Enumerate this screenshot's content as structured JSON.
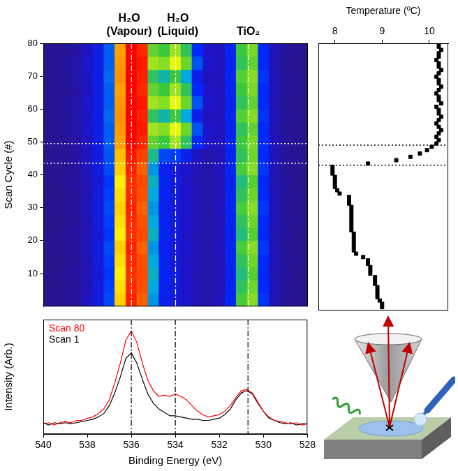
{
  "chart_data": [
    {
      "type": "heatmap",
      "annotations": [
        {
          "x": 536,
          "label": "H₂O (Vapour)"
        },
        {
          "x": 534,
          "label": "H₂O (Liquid)"
        },
        {
          "x": 530.7,
          "label": "TiO₂"
        }
      ],
      "x": [
        540,
        539.5,
        539,
        538.5,
        538,
        537.5,
        537,
        536.5,
        536,
        535.5,
        535,
        534.5,
        534,
        533.5,
        533,
        532.5,
        532,
        531.5,
        531,
        530.5,
        530,
        529.5,
        529,
        528.5,
        528
      ],
      "y": [
        2,
        6,
        10,
        14,
        18,
        22,
        26,
        30,
        34,
        38,
        42,
        46,
        50,
        54,
        58,
        62,
        66,
        70,
        74,
        78
      ],
      "cells": [
        [
          0.05,
          0.06,
          0.06,
          0.08,
          0.13,
          0.21,
          0.33,
          0.74,
          0.96,
          0.88,
          0.4,
          0.25,
          0.2,
          0.16,
          0.12,
          0.1,
          0.13,
          0.27,
          0.53,
          0.58,
          0.31,
          0.12,
          0.07,
          0.06,
          0.05
        ],
        [
          0.05,
          0.05,
          0.06,
          0.08,
          0.12,
          0.2,
          0.32,
          0.72,
          0.95,
          0.9,
          0.42,
          0.26,
          0.2,
          0.15,
          0.12,
          0.1,
          0.12,
          0.26,
          0.5,
          0.56,
          0.3,
          0.12,
          0.08,
          0.06,
          0.05
        ],
        [
          0.06,
          0.05,
          0.07,
          0.09,
          0.12,
          0.19,
          0.31,
          0.7,
          0.94,
          0.91,
          0.44,
          0.27,
          0.21,
          0.15,
          0.11,
          0.1,
          0.12,
          0.25,
          0.48,
          0.54,
          0.29,
          0.11,
          0.08,
          0.05,
          0.05
        ],
        [
          0.05,
          0.05,
          0.06,
          0.08,
          0.12,
          0.2,
          0.32,
          0.72,
          0.95,
          0.9,
          0.42,
          0.26,
          0.2,
          0.15,
          0.12,
          0.1,
          0.12,
          0.26,
          0.5,
          0.56,
          0.3,
          0.12,
          0.08,
          0.06,
          0.05
        ],
        [
          0.05,
          0.06,
          0.06,
          0.08,
          0.13,
          0.21,
          0.33,
          0.74,
          0.96,
          0.88,
          0.4,
          0.25,
          0.2,
          0.16,
          0.12,
          0.1,
          0.13,
          0.27,
          0.53,
          0.58,
          0.31,
          0.12,
          0.07,
          0.06,
          0.05
        ],
        [
          0.06,
          0.05,
          0.07,
          0.09,
          0.12,
          0.19,
          0.31,
          0.7,
          0.94,
          0.91,
          0.44,
          0.27,
          0.21,
          0.15,
          0.11,
          0.1,
          0.12,
          0.25,
          0.48,
          0.54,
          0.29,
          0.11,
          0.08,
          0.05,
          0.05
        ],
        [
          0.05,
          0.05,
          0.06,
          0.08,
          0.12,
          0.2,
          0.32,
          0.72,
          0.95,
          0.9,
          0.42,
          0.26,
          0.2,
          0.15,
          0.12,
          0.1,
          0.12,
          0.26,
          0.5,
          0.56,
          0.3,
          0.12,
          0.08,
          0.06,
          0.05
        ],
        [
          0.05,
          0.06,
          0.06,
          0.08,
          0.13,
          0.21,
          0.33,
          0.74,
          0.96,
          0.88,
          0.4,
          0.25,
          0.2,
          0.16,
          0.12,
          0.1,
          0.13,
          0.27,
          0.53,
          0.58,
          0.31,
          0.12,
          0.07,
          0.06,
          0.05
        ],
        [
          0.05,
          0.05,
          0.06,
          0.08,
          0.12,
          0.2,
          0.32,
          0.72,
          0.95,
          0.9,
          0.42,
          0.26,
          0.2,
          0.15,
          0.12,
          0.1,
          0.12,
          0.26,
          0.5,
          0.56,
          0.3,
          0.12,
          0.08,
          0.06,
          0.05
        ],
        [
          0.06,
          0.05,
          0.07,
          0.09,
          0.12,
          0.19,
          0.31,
          0.7,
          0.94,
          0.91,
          0.44,
          0.27,
          0.21,
          0.15,
          0.11,
          0.1,
          0.12,
          0.25,
          0.48,
          0.54,
          0.29,
          0.11,
          0.08,
          0.05,
          0.05
        ],
        [
          0.05,
          0.06,
          0.06,
          0.08,
          0.13,
          0.21,
          0.33,
          0.74,
          0.96,
          0.88,
          0.4,
          0.25,
          0.2,
          0.16,
          0.12,
          0.1,
          0.13,
          0.27,
          0.53,
          0.58,
          0.31,
          0.12,
          0.07,
          0.06,
          0.05
        ],
        [
          0.05,
          0.06,
          0.07,
          0.09,
          0.13,
          0.21,
          0.34,
          0.76,
          0.97,
          0.92,
          0.47,
          0.33,
          0.32,
          0.24,
          0.14,
          0.1,
          0.12,
          0.26,
          0.5,
          0.56,
          0.3,
          0.12,
          0.08,
          0.06,
          0.05
        ],
        [
          0.06,
          0.06,
          0.07,
          0.09,
          0.14,
          0.22,
          0.35,
          0.8,
          1.0,
          0.95,
          0.55,
          0.52,
          0.6,
          0.5,
          0.3,
          0.15,
          0.13,
          0.26,
          0.52,
          0.57,
          0.3,
          0.12,
          0.08,
          0.06,
          0.05
        ],
        [
          0.06,
          0.06,
          0.08,
          0.1,
          0.15,
          0.22,
          0.35,
          0.81,
          1.0,
          0.97,
          0.6,
          0.58,
          0.66,
          0.56,
          0.34,
          0.16,
          0.13,
          0.25,
          0.5,
          0.55,
          0.29,
          0.11,
          0.07,
          0.06,
          0.05
        ],
        [
          0.05,
          0.06,
          0.07,
          0.1,
          0.14,
          0.23,
          0.36,
          0.82,
          1.0,
          0.96,
          0.5,
          0.45,
          0.52,
          0.42,
          0.24,
          0.13,
          0.13,
          0.27,
          0.54,
          0.58,
          0.31,
          0.12,
          0.08,
          0.06,
          0.05
        ],
        [
          0.06,
          0.06,
          0.08,
          0.1,
          0.15,
          0.22,
          0.35,
          0.81,
          1.0,
          0.97,
          0.6,
          0.58,
          0.66,
          0.56,
          0.34,
          0.16,
          0.13,
          0.25,
          0.5,
          0.55,
          0.29,
          0.11,
          0.07,
          0.06,
          0.05
        ],
        [
          0.06,
          0.06,
          0.07,
          0.09,
          0.14,
          0.22,
          0.35,
          0.8,
          1.0,
          0.95,
          0.55,
          0.52,
          0.6,
          0.5,
          0.3,
          0.15,
          0.13,
          0.26,
          0.52,
          0.57,
          0.3,
          0.12,
          0.08,
          0.06,
          0.05
        ],
        [
          0.05,
          0.06,
          0.07,
          0.1,
          0.14,
          0.23,
          0.36,
          0.82,
          1.0,
          0.96,
          0.5,
          0.45,
          0.52,
          0.42,
          0.24,
          0.13,
          0.13,
          0.27,
          0.54,
          0.58,
          0.31,
          0.12,
          0.08,
          0.06,
          0.05
        ],
        [
          0.06,
          0.06,
          0.08,
          0.1,
          0.15,
          0.22,
          0.35,
          0.81,
          1.0,
          0.97,
          0.6,
          0.58,
          0.66,
          0.56,
          0.34,
          0.16,
          0.13,
          0.25,
          0.5,
          0.55,
          0.29,
          0.11,
          0.07,
          0.06,
          0.05
        ],
        [
          0.06,
          0.06,
          0.07,
          0.09,
          0.14,
          0.22,
          0.35,
          0.8,
          1.0,
          0.95,
          0.55,
          0.52,
          0.6,
          0.5,
          0.3,
          0.15,
          0.13,
          0.26,
          0.52,
          0.57,
          0.3,
          0.12,
          0.08,
          0.06,
          0.05
        ]
      ],
      "zlim": [
        0,
        1
      ],
      "xlim": [
        540,
        528
      ],
      "ylim": [
        0,
        80
      ],
      "yticks": [
        10,
        20,
        30,
        40,
        50,
        60,
        70,
        80
      ],
      "ylabel": "Scan Cycle (#)",
      "hlines": [
        43.5,
        49.5
      ],
      "tick_labels": "y"
    },
    {
      "type": "scatter",
      "xlabel": "Temperature (ºC)",
      "x": [
        9.0,
        9.0,
        8.95,
        8.9,
        8.9,
        8.9,
        8.9,
        8.85,
        8.85,
        8.85,
        8.75,
        8.75,
        8.75,
        8.7,
        8.7,
        8.6,
        8.45,
        8.4,
        8.4,
        8.4,
        8.4,
        8.4,
        8.4,
        8.35,
        8.35,
        8.35,
        8.35,
        8.35,
        8.35,
        8.35,
        8.35,
        8.3,
        8.3,
        8.3,
        8.1,
        8.05,
        8.0,
        8.0,
        8.0,
        8.0,
        7.95,
        7.95,
        7.95,
        8.7,
        9.3,
        9.6,
        9.8,
        9.95,
        10.05,
        10.15,
        10.2,
        10.15,
        10.2,
        10.25,
        10.2,
        10.15,
        10.2,
        10.25,
        10.2,
        10.2,
        10.15,
        10.25,
        10.2,
        10.2,
        10.15,
        10.2,
        10.25,
        10.2,
        10.2,
        10.15,
        10.2,
        10.25,
        10.2,
        10.2,
        10.15,
        10.2,
        10.2,
        10.25,
        10.2,
        10.2
      ],
      "y": [
        1,
        2,
        3,
        4,
        5,
        6,
        7,
        8,
        9,
        10,
        11,
        12,
        13,
        14,
        15,
        16,
        17,
        18,
        19,
        20,
        21,
        22,
        23,
        24,
        25,
        26,
        27,
        28,
        29,
        30,
        31,
        32,
        33,
        34,
        35,
        36,
        37,
        38,
        39,
        40,
        41,
        42,
        43,
        44,
        45,
        46,
        47,
        48,
        49,
        50,
        51,
        52,
        53,
        54,
        55,
        56,
        57,
        58,
        59,
        60,
        61,
        62,
        63,
        64,
        65,
        66,
        67,
        68,
        69,
        70,
        71,
        72,
        73,
        74,
        75,
        76,
        77,
        78,
        79,
        80
      ],
      "color": "#000000",
      "marker": "square",
      "xlim": [
        7.65,
        10.4
      ],
      "xticks": [
        8,
        9,
        10
      ],
      "ylim": [
        0,
        80
      ],
      "hlines": [
        43.5,
        49.5
      ],
      "tick_labels": "x"
    },
    {
      "type": "line",
      "x": [
        540,
        539.75,
        539.5,
        539.25,
        539,
        538.75,
        538.5,
        538.25,
        538,
        537.75,
        537.5,
        537.25,
        537,
        536.75,
        536.5,
        536.25,
        536,
        535.75,
        535.5,
        535.25,
        535,
        534.75,
        534.5,
        534.25,
        534,
        533.75,
        533.5,
        533.25,
        533,
        532.75,
        532.5,
        532.25,
        532,
        531.75,
        531.5,
        531.25,
        531,
        530.75,
        530.5,
        530.25,
        530,
        529.75,
        529.5,
        529.25,
        529,
        528.75,
        528.5,
        528.25,
        528
      ],
      "series": [
        {
          "name": "Scan 80",
          "color": "#ff0000",
          "values": [
            0.09,
            0.1,
            0.08,
            0.1,
            0.11,
            0.1,
            0.12,
            0.12,
            0.14,
            0.15,
            0.18,
            0.22,
            0.3,
            0.45,
            0.62,
            0.82,
            0.9,
            0.8,
            0.62,
            0.47,
            0.38,
            0.33,
            0.34,
            0.33,
            0.35,
            0.33,
            0.3,
            0.25,
            0.2,
            0.17,
            0.15,
            0.16,
            0.17,
            0.2,
            0.25,
            0.32,
            0.38,
            0.39,
            0.36,
            0.28,
            0.2,
            0.15,
            0.12,
            0.11,
            0.1,
            0.09,
            0.1,
            0.08,
            0.09
          ]
        },
        {
          "name": "Scan 1",
          "color": "#000000",
          "values": [
            0.1,
            0.08,
            0.1,
            0.09,
            0.1,
            0.09,
            0.1,
            0.11,
            0.12,
            0.13,
            0.15,
            0.18,
            0.25,
            0.36,
            0.5,
            0.66,
            0.71,
            0.62,
            0.48,
            0.35,
            0.27,
            0.22,
            0.19,
            0.16,
            0.16,
            0.15,
            0.14,
            0.13,
            0.13,
            0.12,
            0.12,
            0.13,
            0.14,
            0.17,
            0.22,
            0.3,
            0.36,
            0.38,
            0.35,
            0.27,
            0.2,
            0.14,
            0.12,
            0.1,
            0.09,
            0.1,
            0.08,
            0.09,
            0.09
          ]
        }
      ],
      "xlim": [
        540,
        528
      ],
      "xticks": [
        540,
        538,
        536,
        534,
        532,
        530,
        528
      ],
      "ylim": [
        0,
        1
      ],
      "xlabel": "Binding Energy (eV)",
      "ylabel": "Intensity (Arb.)",
      "vlines": [
        536,
        534,
        530.7
      ],
      "legend": "upper left",
      "tick_labels": "x"
    }
  ]
}
